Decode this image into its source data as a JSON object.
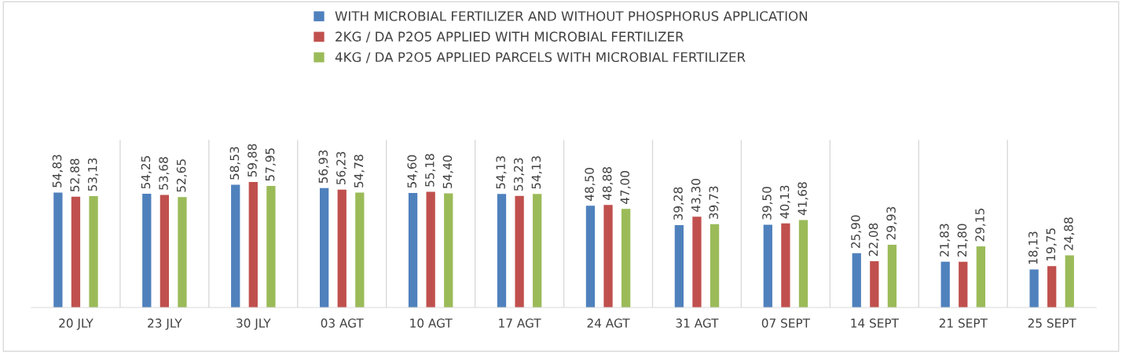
{
  "chart_data": {
    "type": "bar",
    "categories": [
      "20 JLY",
      "23 JLY",
      "30 JLY",
      "03 AGT",
      "10 AGT",
      "17 AGT",
      "24 AGT",
      "31 AGT",
      "07 SEPT",
      "14 SEPT",
      "21 SEPT",
      "25 SEPT"
    ],
    "series": [
      {
        "name": "WITH MICROBIAL FERTILIZER AND WITHOUT PHOSPHORUS APPLICATION",
        "color": "#4f81bd",
        "values": [
          54.83,
          54.25,
          58.53,
          56.93,
          54.6,
          54.13,
          48.5,
          39.28,
          39.5,
          25.9,
          21.83,
          18.13
        ],
        "value_labels": [
          "54,83",
          "54,25",
          "58,53",
          "56,93",
          "54,60",
          "54,13",
          "48,50",
          "39,28",
          "39,50",
          "25,90",
          "21,83",
          "18,13"
        ]
      },
      {
        "name": "2KG / DA P2O5 APPLIED WITH MICROBIAL FERTILIZER",
        "color": "#c0504d",
        "values": [
          52.88,
          53.68,
          59.88,
          56.23,
          55.18,
          53.23,
          48.88,
          43.3,
          40.13,
          22.08,
          21.8,
          19.75
        ],
        "value_labels": [
          "52,88",
          "53,68",
          "59,88",
          "56,23",
          "55,18",
          "53,23",
          "48,88",
          "43,30",
          "40,13",
          "22,08",
          "21,80",
          "19,75"
        ]
      },
      {
        "name": "4KG / DA P2O5 APPLIED PARCELS WITH MICROBIAL FERTILIZER",
        "color": "#9bbb59",
        "values": [
          53.13,
          52.65,
          57.95,
          54.78,
          54.4,
          54.13,
          47.0,
          39.73,
          41.68,
          29.93,
          29.15,
          24.88
        ],
        "value_labels": [
          "53,13",
          "52,65",
          "57,95",
          "54,78",
          "54,40",
          "54,13",
          "47,00",
          "39,73",
          "41,68",
          "29,93",
          "29,15",
          "24,88"
        ]
      }
    ],
    "ylim": [
      0,
      80
    ],
    "tick_labels": "x",
    "grid": "x",
    "legend": "top"
  }
}
